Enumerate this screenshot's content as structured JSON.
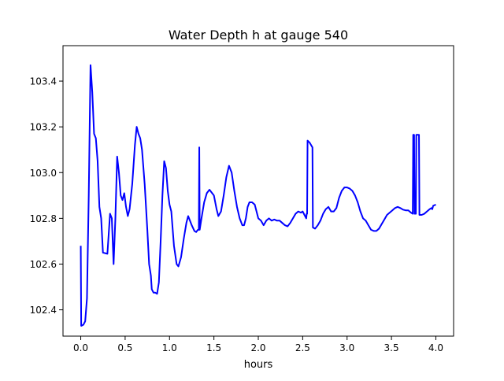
{
  "chart_data": {
    "type": "line",
    "title": "Water Depth h at gauge 540",
    "xlabel": "hours",
    "ylabel": "",
    "xlim": [
      -0.2,
      4.2
    ],
    "ylim": [
      102.285,
      103.555
    ],
    "xticks": [
      0.0,
      0.5,
      1.0,
      1.5,
      2.0,
      2.5,
      3.0,
      3.5,
      4.0
    ],
    "xtick_labels": [
      "0.0",
      "0.5",
      "1.0",
      "1.5",
      "2.0",
      "2.5",
      "3.0",
      "3.5",
      "4.0"
    ],
    "yticks": [
      102.4,
      102.6,
      102.8,
      103.0,
      103.2,
      103.4
    ],
    "ytick_labels": [
      "102.4",
      "102.6",
      "102.8",
      "103.0",
      "103.2",
      "103.4"
    ],
    "grid": false,
    "legend": "none",
    "series": [
      {
        "color": "#0000ff",
        "points": [
          [
            0.0,
            102.68
          ],
          [
            0.005,
            102.33
          ],
          [
            0.03,
            102.335
          ],
          [
            0.05,
            102.35
          ],
          [
            0.07,
            102.45
          ],
          [
            0.09,
            102.9
          ],
          [
            0.11,
            103.47
          ],
          [
            0.13,
            103.35
          ],
          [
            0.15,
            103.17
          ],
          [
            0.17,
            103.15
          ],
          [
            0.19,
            103.05
          ],
          [
            0.21,
            102.85
          ],
          [
            0.23,
            102.8
          ],
          [
            0.25,
            102.65
          ],
          [
            0.3,
            102.645
          ],
          [
            0.33,
            102.82
          ],
          [
            0.35,
            102.8
          ],
          [
            0.37,
            102.6
          ],
          [
            0.39,
            102.8
          ],
          [
            0.41,
            103.07
          ],
          [
            0.43,
            103.0
          ],
          [
            0.45,
            102.9
          ],
          [
            0.47,
            102.88
          ],
          [
            0.49,
            102.91
          ],
          [
            0.51,
            102.85
          ],
          [
            0.53,
            102.81
          ],
          [
            0.55,
            102.84
          ],
          [
            0.58,
            102.95
          ],
          [
            0.61,
            103.12
          ],
          [
            0.63,
            103.2
          ],
          [
            0.65,
            103.17
          ],
          [
            0.67,
            103.15
          ],
          [
            0.69,
            103.1
          ],
          [
            0.72,
            102.95
          ],
          [
            0.75,
            102.75
          ],
          [
            0.77,
            102.6
          ],
          [
            0.79,
            102.55
          ],
          [
            0.8,
            102.49
          ],
          [
            0.82,
            102.475
          ],
          [
            0.84,
            102.475
          ],
          [
            0.86,
            102.47
          ],
          [
            0.88,
            102.52
          ],
          [
            0.9,
            102.7
          ],
          [
            0.92,
            102.9
          ],
          [
            0.94,
            103.05
          ],
          [
            0.96,
            103.02
          ],
          [
            0.98,
            102.92
          ],
          [
            1.0,
            102.86
          ],
          [
            1.02,
            102.83
          ],
          [
            1.05,
            102.68
          ],
          [
            1.08,
            102.6
          ],
          [
            1.1,
            102.59
          ],
          [
            1.13,
            102.63
          ],
          [
            1.16,
            102.71
          ],
          [
            1.19,
            102.78
          ],
          [
            1.21,
            102.81
          ],
          [
            1.23,
            102.79
          ],
          [
            1.25,
            102.77
          ],
          [
            1.28,
            102.745
          ],
          [
            1.3,
            102.74
          ],
          [
            1.32,
            102.75
          ],
          [
            1.33,
            102.75
          ],
          [
            1.335,
            103.11
          ],
          [
            1.34,
            102.75
          ],
          [
            1.36,
            102.8
          ],
          [
            1.39,
            102.87
          ],
          [
            1.42,
            102.91
          ],
          [
            1.45,
            102.925
          ],
          [
            1.48,
            102.91
          ],
          [
            1.5,
            102.9
          ],
          [
            1.53,
            102.84
          ],
          [
            1.55,
            102.81
          ],
          [
            1.58,
            102.83
          ],
          [
            1.61,
            102.9
          ],
          [
            1.64,
            102.98
          ],
          [
            1.67,
            103.03
          ],
          [
            1.7,
            103.0
          ],
          [
            1.73,
            102.92
          ],
          [
            1.76,
            102.85
          ],
          [
            1.79,
            102.8
          ],
          [
            1.82,
            102.77
          ],
          [
            1.84,
            102.77
          ],
          [
            1.86,
            102.8
          ],
          [
            1.88,
            102.85
          ],
          [
            1.9,
            102.87
          ],
          [
            1.93,
            102.87
          ],
          [
            1.96,
            102.86
          ],
          [
            1.98,
            102.83
          ],
          [
            2.0,
            102.8
          ],
          [
            2.03,
            102.79
          ],
          [
            2.06,
            102.77
          ],
          [
            2.09,
            102.79
          ],
          [
            2.12,
            102.8
          ],
          [
            2.15,
            102.79
          ],
          [
            2.18,
            102.795
          ],
          [
            2.21,
            102.79
          ],
          [
            2.24,
            102.79
          ],
          [
            2.27,
            102.78
          ],
          [
            2.3,
            102.77
          ],
          [
            2.33,
            102.765
          ],
          [
            2.36,
            102.78
          ],
          [
            2.39,
            102.8
          ],
          [
            2.42,
            102.82
          ],
          [
            2.45,
            102.83
          ],
          [
            2.48,
            102.825
          ],
          [
            2.5,
            102.83
          ],
          [
            2.52,
            102.815
          ],
          [
            2.54,
            102.8
          ],
          [
            2.545,
            102.82
          ],
          [
            2.55,
            102.82
          ],
          [
            2.555,
            103.14
          ],
          [
            2.58,
            103.13
          ],
          [
            2.61,
            103.11
          ],
          [
            2.615,
            102.76
          ],
          [
            2.64,
            102.755
          ],
          [
            2.67,
            102.77
          ],
          [
            2.7,
            102.79
          ],
          [
            2.73,
            102.82
          ],
          [
            2.76,
            102.84
          ],
          [
            2.79,
            102.85
          ],
          [
            2.82,
            102.83
          ],
          [
            2.85,
            102.83
          ],
          [
            2.88,
            102.845
          ],
          [
            2.91,
            102.89
          ],
          [
            2.94,
            102.92
          ],
          [
            2.97,
            102.935
          ],
          [
            3.0,
            102.935
          ],
          [
            3.03,
            102.93
          ],
          [
            3.06,
            102.92
          ],
          [
            3.09,
            102.9
          ],
          [
            3.12,
            102.87
          ],
          [
            3.15,
            102.83
          ],
          [
            3.18,
            102.8
          ],
          [
            3.21,
            102.79
          ],
          [
            3.24,
            102.77
          ],
          [
            3.27,
            102.75
          ],
          [
            3.3,
            102.745
          ],
          [
            3.33,
            102.745
          ],
          [
            3.36,
            102.755
          ],
          [
            3.39,
            102.775
          ],
          [
            3.42,
            102.795
          ],
          [
            3.45,
            102.815
          ],
          [
            3.48,
            102.825
          ],
          [
            3.51,
            102.835
          ],
          [
            3.54,
            102.845
          ],
          [
            3.57,
            102.85
          ],
          [
            3.6,
            102.845
          ],
          [
            3.63,
            102.838
          ],
          [
            3.66,
            102.835
          ],
          [
            3.69,
            102.835
          ],
          [
            3.72,
            102.825
          ],
          [
            3.74,
            102.82
          ],
          [
            3.745,
            103.165
          ],
          [
            3.755,
            103.165
          ],
          [
            3.76,
            102.82
          ],
          [
            3.775,
            102.82
          ],
          [
            3.78,
            103.165
          ],
          [
            3.81,
            103.165
          ],
          [
            3.815,
            102.815
          ],
          [
            3.84,
            102.815
          ],
          [
            3.87,
            102.82
          ],
          [
            3.9,
            102.83
          ],
          [
            3.93,
            102.84
          ],
          [
            3.95,
            102.845
          ],
          [
            3.96,
            102.84
          ],
          [
            3.97,
            102.855
          ],
          [
            4.0,
            102.86
          ]
        ]
      }
    ]
  }
}
